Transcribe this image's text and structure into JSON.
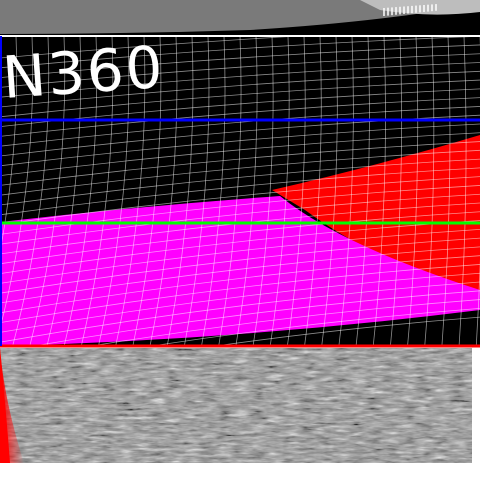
{
  "brand": {
    "text": "N360"
  },
  "colors": {
    "background": "#000000",
    "grid": "#ffffff",
    "magenta_region": "#ff00ff",
    "red_region": "#ff0000",
    "line_blue": "#0000ff",
    "line_green": "#00ff00",
    "line_red": "#ff0000",
    "top_band": "#808080",
    "noise_strip": "#9a9a9a"
  },
  "regions": [
    "top-grey-band",
    "black-grid-area",
    "magenta-region",
    "red-region",
    "noise-texture-strip"
  ]
}
